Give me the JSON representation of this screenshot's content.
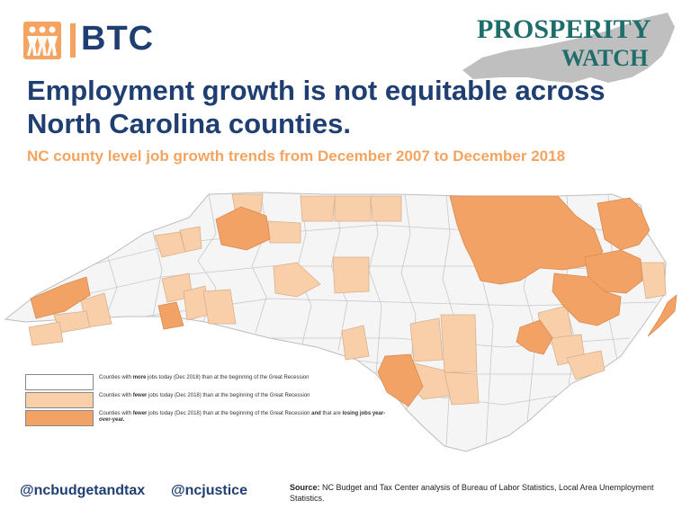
{
  "logo": {
    "text": "BTC",
    "icon": "figures-logo-icon"
  },
  "brand": {
    "line1": "PROSPERITY",
    "line2": "WATCH"
  },
  "title": "Employment growth is not equitable across North Carolina counties.",
  "subtitle": "NC county level job growth trends from December 2007 to December 2018",
  "colors": {
    "navy": "#1f3f73",
    "orange": "#f4a460",
    "light": "#f8cfa8",
    "dark": "#f2a264",
    "white": "#f5f5f5",
    "border": "#bdbdbd",
    "teal": "#1f6d6a"
  },
  "legend": [
    {
      "pre": "Counties with ",
      "bold": "more",
      "post": " jobs today (Dec 2018) than at the beginning of the Great Recession",
      "bold2": "",
      "post2": ""
    },
    {
      "pre": "Counties with ",
      "bold": "fewer",
      "post": " jobs today (Dec 2018) than at the beginning of the Great Recession",
      "bold2": "",
      "post2": ""
    },
    {
      "pre": "Counties with ",
      "bold": "fewer",
      "post": " jobs today (Dec 2018) than at the beginning of the Great Recession ",
      "bold2": "and",
      "post2": " that are ",
      "bold3": "losing jobs year-over-year."
    }
  ],
  "footer": {
    "handle1": "@ncbudgetandtax",
    "handle2": "@ncjustice",
    "source_label": "Source:",
    "source_text": " NC Budget and Tax Center analysis of Bureau of Labor Statistics, Local Area Unemployment Statistics."
  }
}
